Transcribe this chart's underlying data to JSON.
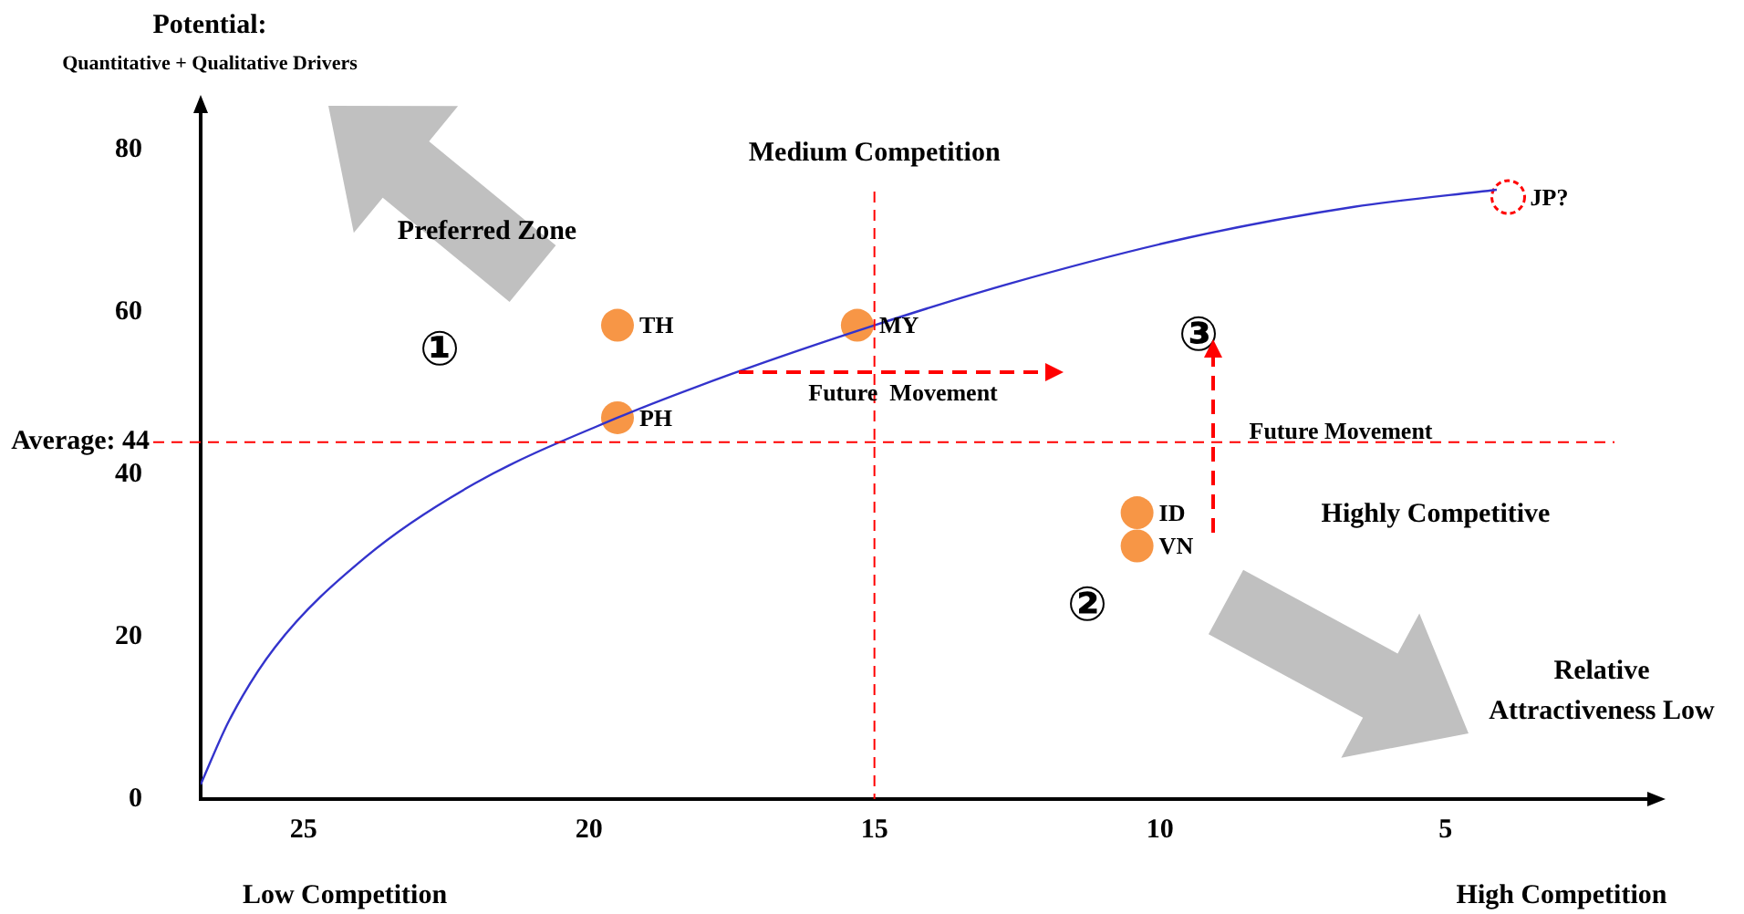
{
  "chart_data": {
    "type": "scatter",
    "ylabel": "Potential:\nQuantitative + Qualitative Drivers",
    "xlim": [
      26.8,
      1.4
    ],
    "xticks": [
      25,
      20,
      15,
      10,
      5
    ],
    "ylim": [
      0,
      85
    ],
    "yticks": [
      0,
      20,
      40,
      60,
      80
    ],
    "grid": false,
    "legend": false,
    "marker": "circle",
    "series": [
      {
        "type": "line",
        "color": "#3333cc",
        "marker": "none",
        "x": [
          26.8,
          26.3,
          25.5,
          23.9,
          22.0,
          19.5,
          17.5,
          15.0,
          12.6,
          9.5,
          6.6,
          4.1
        ],
        "values": [
          1.8,
          9.7,
          18.7,
          29.9,
          38.9,
          47,
          52.4,
          58.4,
          63.6,
          69.2,
          73.0,
          75.1
        ]
      },
      {
        "name": "TH",
        "color": "#f79646",
        "x": [
          19.5
        ],
        "values": [
          58.4
        ]
      },
      {
        "name": "MY",
        "color": "#f79646",
        "x": [
          15.3
        ],
        "values": [
          58.4
        ]
      },
      {
        "name": "PH",
        "color": "#f79646",
        "x": [
          19.5
        ],
        "values": [
          47
        ]
      },
      {
        "name": "ID",
        "color": "#f79646",
        "x": [
          10.4
        ],
        "values": [
          35.3
        ]
      },
      {
        "name": "VN",
        "color": "#f79646",
        "x": [
          10.4
        ],
        "values": [
          31.2
        ]
      },
      {
        "name": "JP?",
        "color": "#ff0000",
        "line_style": "dashed",
        "x": [
          3.9
        ],
        "values": [
          74.2
        ]
      }
    ],
    "ref_lines": [
      {
        "axis": "y",
        "value": 44,
        "label": "Average: 44",
        "color": "#ff0000",
        "line_style": "dashed"
      },
      {
        "axis": "x",
        "value": 15,
        "label": "Medium Competition",
        "color": "#ff0000",
        "line_style": "dashed"
      }
    ],
    "annotations": [
      "Preferred Zone",
      "Highly Competitive",
      "Relative\nAttractiveness Low",
      "Low Competition",
      "High Competition",
      "Future  Movement",
      "Future Movement",
      "①",
      "②",
      "③"
    ]
  }
}
